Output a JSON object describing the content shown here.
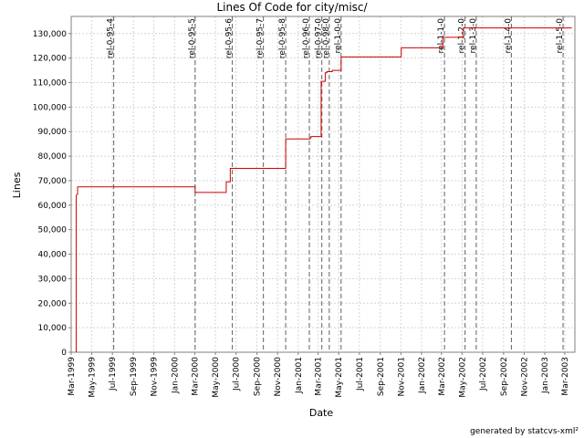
{
  "chart_data": {
    "type": "line",
    "title": "Lines Of Code for city/misc/",
    "xlabel": "Date",
    "ylabel": "Lines",
    "xlim": [
      "1999-03-01",
      "2003-03-31"
    ],
    "ylim": [
      0,
      137000
    ],
    "grid": true,
    "line_color": "#cc0000",
    "x_ticks": [
      "Mar-1999",
      "May-1999",
      "Jul-1999",
      "Sep-1999",
      "Nov-1999",
      "Jan-2000",
      "Mar-2000",
      "May-2000",
      "Jul-2000",
      "Sep-2000",
      "Nov-2000",
      "Jan-2001",
      "Mar-2001",
      "May-2001",
      "Jul-2001",
      "Sep-2001",
      "Nov-2001",
      "Jan-2002",
      "Mar-2002",
      "May-2002",
      "Jul-2002",
      "Sep-2002",
      "Nov-2002",
      "Jan-2003",
      "Mar-2003"
    ],
    "y_ticks": [
      {
        "value": 0,
        "label": "0"
      },
      {
        "value": 10000,
        "label": "10,000"
      },
      {
        "value": 20000,
        "label": "20,000"
      },
      {
        "value": 30000,
        "label": "30,000"
      },
      {
        "value": 40000,
        "label": "40,000"
      },
      {
        "value": 50000,
        "label": "50,000"
      },
      {
        "value": 60000,
        "label": "60,000"
      },
      {
        "value": 70000,
        "label": "70,000"
      },
      {
        "value": 80000,
        "label": "80,000"
      },
      {
        "value": 90000,
        "label": "90,000"
      },
      {
        "value": 100000,
        "label": "100,000"
      },
      {
        "value": 110000,
        "label": "110,000"
      },
      {
        "value": 120000,
        "label": "120,000"
      },
      {
        "value": 130000,
        "label": "130,000"
      }
    ],
    "points": [
      {
        "x": "1999-03-16",
        "y": 0
      },
      {
        "x": "1999-03-16",
        "y": 64000
      },
      {
        "x": "1999-03-20",
        "y": 64500
      },
      {
        "x": "1999-03-20",
        "y": 67500
      },
      {
        "x": "2000-03-02",
        "y": 67500
      },
      {
        "x": "2000-03-02",
        "y": 65200
      },
      {
        "x": "2000-06-02",
        "y": 65200
      },
      {
        "x": "2000-06-02",
        "y": 69500
      },
      {
        "x": "2000-06-14",
        "y": 69500
      },
      {
        "x": "2000-06-14",
        "y": 75000
      },
      {
        "x": "2000-11-25",
        "y": 75000
      },
      {
        "x": "2000-11-25",
        "y": 87000
      },
      {
        "x": "2001-02-05",
        "y": 87000
      },
      {
        "x": "2001-02-05",
        "y": 87500
      },
      {
        "x": "2001-02-08",
        "y": 87500
      },
      {
        "x": "2001-02-08",
        "y": 88000
      },
      {
        "x": "2001-03-10",
        "y": 88000
      },
      {
        "x": "2001-03-10",
        "y": 110500
      },
      {
        "x": "2001-03-22",
        "y": 110500
      },
      {
        "x": "2001-03-22",
        "y": 114000
      },
      {
        "x": "2001-03-27",
        "y": 114000
      },
      {
        "x": "2001-03-27",
        "y": 114500
      },
      {
        "x": "2001-04-12",
        "y": 114500
      },
      {
        "x": "2001-04-12",
        "y": 115000
      },
      {
        "x": "2001-05-08",
        "y": 115000
      },
      {
        "x": "2001-05-08",
        "y": 120500
      },
      {
        "x": "2001-11-02",
        "y": 120500
      },
      {
        "x": "2001-11-02",
        "y": 124200
      },
      {
        "x": "2002-03-05",
        "y": 124200
      },
      {
        "x": "2002-03-05",
        "y": 128500
      },
      {
        "x": "2002-05-05",
        "y": 128500
      },
      {
        "x": "2002-05-05",
        "y": 132300
      },
      {
        "x": "2003-03-22",
        "y": 132300
      }
    ],
    "markers": [
      {
        "label": "rel-0-95-4",
        "x": "1999-07-05"
      },
      {
        "label": "rel-0-95-5",
        "x": "2000-03-02"
      },
      {
        "label": "rel-0-95-6",
        "x": "2000-06-20"
      },
      {
        "label": "rel-0-95-7",
        "x": "2000-09-20"
      },
      {
        "label": "rel-0-95-8",
        "x": "2000-11-25"
      },
      {
        "label": "rel-0-96-0",
        "x": "2001-02-03"
      },
      {
        "label": "rel-0-97-0",
        "x": "2001-03-12"
      },
      {
        "label": "rel-0-98-0",
        "x": "2001-04-03"
      },
      {
        "label": "rel-1-0-0",
        "x": "2001-05-08"
      },
      {
        "label": "rel-1-1-0",
        "x": "2002-03-10"
      },
      {
        "label": "rel-1-2-0",
        "x": "2002-05-10"
      },
      {
        "label": "rel-1-3-0",
        "x": "2002-06-12"
      },
      {
        "label": "rel-1-4-0",
        "x": "2002-09-24"
      },
      {
        "label": "rel-1-5-0",
        "x": "2003-02-24"
      }
    ],
    "credit": "generated by statcvs-xml²"
  }
}
